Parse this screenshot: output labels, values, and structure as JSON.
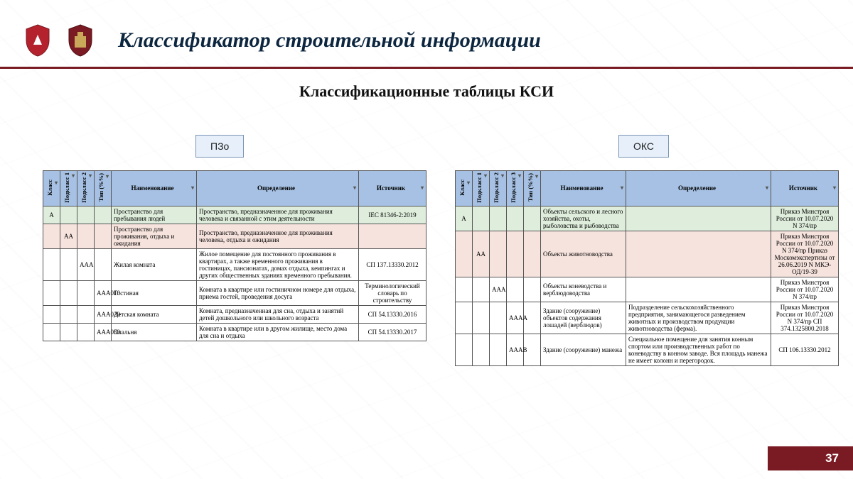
{
  "header": {
    "title": "Классификатор строительной информации",
    "subtitle": "Классификационные таблицы КСИ",
    "rule_color": "#7a1a22"
  },
  "tags": {
    "left": "ПЗо",
    "right": "ОКС"
  },
  "table_left": {
    "columns": {
      "c1": "Класс",
      "c2": "Подкласс 1",
      "c3": "Подкласс 2",
      "c4": "Тип (%%)",
      "name": "Наименование",
      "def": "Определение",
      "src": "Источник"
    },
    "rows": [
      {
        "style": "row-green",
        "c1": "A",
        "c2": "",
        "c3": "",
        "c4": "",
        "name": "Пространство для пребывания людей",
        "def": "Пространство, предназначенное для проживания человека и связанной с этим деятельности",
        "src": "IEC 81346-2:2019"
      },
      {
        "style": "row-pink",
        "c1": "",
        "c2": "AA",
        "c3": "",
        "c4": "",
        "name": "Пространство для проживания, отдыха и ожидания",
        "def": "Пространство, предназначенное для проживания человека, отдыха и ожидания",
        "src": ""
      },
      {
        "style": "row-white",
        "c1": "",
        "c2": "",
        "c3": "AAA",
        "c4": "",
        "name": "Жилая комната",
        "def": "Жилое помещение для постоянного проживания в квартирах, а также временного проживания в гостиницах, пансионатах, домах отдыха, кемпингах и других общественных зданиях временного пребывания.",
        "src": "СП 137.13330.2012"
      },
      {
        "style": "row-white",
        "c1": "",
        "c2": "",
        "c3": "",
        "c4": "AAA010",
        "name": "Гостиная",
        "def": "Комната в квартире или гостиничном номере для отдыха, приема гостей, проведения досуга",
        "src": "Терминологический словарь по строительству"
      },
      {
        "style": "row-white",
        "c1": "",
        "c2": "",
        "c3": "",
        "c4": "AAA020",
        "name": "Детская комната",
        "def": "Комната, предназначенная для сна, отдыха и занятий детей дошкольного или школьного возраста",
        "src": "СП 54.13330.2016"
      },
      {
        "style": "row-white",
        "c1": "",
        "c2": "",
        "c3": "",
        "c4": "AAA030",
        "name": "Спальня",
        "def": "Комната в квартире или в другом жилище, место дома для сна и отдыха",
        "src": "СП 54.13330.2017"
      }
    ]
  },
  "table_right": {
    "columns": {
      "c1": "Класс",
      "c2": "Подкласс 1",
      "c3": "Подкласс 2",
      "c4": "Подкласс 3",
      "c5": "Тип (%%)",
      "name": "Наименование",
      "def": "Определение",
      "src": "Источник"
    },
    "rows": [
      {
        "style": "row-green",
        "c1": "A",
        "c2": "",
        "c3": "",
        "c4": "",
        "c5": "",
        "name": "Объекты сельского и лесного хозяйства, охоты, рыболовства и рыбоводства",
        "def": "",
        "src": "Приказ Минстроя России от 10.07.2020 N 374/пр"
      },
      {
        "style": "row-pink",
        "c1": "",
        "c2": "AA",
        "c3": "",
        "c4": "",
        "c5": "",
        "name": "Объекты животноводства",
        "def": "",
        "src": "Приказ Минстроя России от 10.07.2020 N 374/пр Приказ Москомэкспертизы от 26.06.2019 N МКЭ-ОД/19-39"
      },
      {
        "style": "row-white",
        "c1": "",
        "c2": "",
        "c3": "AAA",
        "c4": "",
        "c5": "",
        "name": "Объекты коневодства и верблюдоводства",
        "def": "",
        "src": "Приказ Минстроя России от 10.07.2020 N 374/пр"
      },
      {
        "style": "row-white",
        "c1": "",
        "c2": "",
        "c3": "",
        "c4": "AAAA",
        "c5": "",
        "name": "Здание (сооружение) объектов содержания лошадей (верблюдов)",
        "def": "Подразделение сельскохозяйственного предприятия, занимающегося разведением животных и производством продукции животноводства (ферма).",
        "src": "Приказ Минстроя России от 10.07.2020 N 374/пр СП 374.1325800.2018"
      },
      {
        "style": "row-white",
        "c1": "",
        "c2": "",
        "c3": "",
        "c4": "AAAB",
        "c5": "",
        "name": "Здание (сооружение) манежа",
        "def": "Специальное помещение для занятия конным спортом или производственных работ по коневодству в конном заводе. Вся площадь манежа не имеет колонн и перегородок.",
        "src": "СП 106.13330.2012"
      }
    ]
  },
  "page_number": "37",
  "colors": {
    "blue_head": "#a6c1e3",
    "green_row": "#dfeedc",
    "pink_row": "#f6e3dd",
    "badge": "#7a1a22",
    "tag_bg": "#e6effa",
    "tag_border": "#7a95b5"
  }
}
